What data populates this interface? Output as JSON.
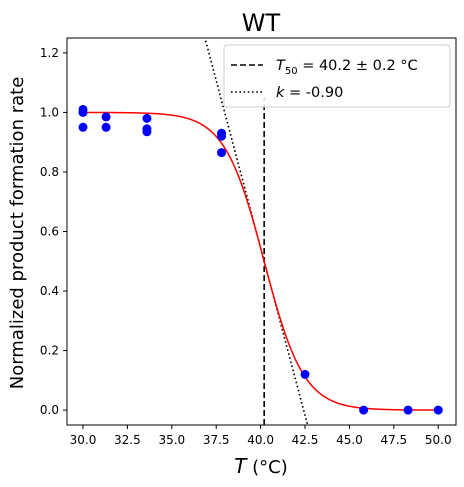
{
  "chart_data": {
    "type": "scatter",
    "title": "WT",
    "xlabel": {
      "symbol": "T",
      "unit": "(°C)"
    },
    "ylabel": "Normalized product formation rate",
    "xlim": [
      29.1,
      51.0
    ],
    "ylim": [
      -0.05,
      1.25
    ],
    "xticks": [
      30.0,
      32.5,
      35.0,
      37.5,
      40.0,
      42.5,
      45.0,
      47.5,
      50.0
    ],
    "xtick_labels": [
      "30.0",
      "32.5",
      "35.0",
      "37.5",
      "40.0",
      "42.5",
      "45.0",
      "47.5",
      "50.0"
    ],
    "yticks": [
      0.0,
      0.2,
      0.4,
      0.6,
      0.8,
      1.0,
      1.2
    ],
    "ytick_labels": [
      "0.0",
      "0.2",
      "0.4",
      "0.6",
      "0.8",
      "1.0",
      "1.2"
    ],
    "grid": false,
    "legend_position": "top-right",
    "points": {
      "color": "#0000ff",
      "x": [
        30.0,
        30.0,
        30.0,
        31.3,
        31.3,
        33.6,
        33.6,
        33.6,
        37.8,
        37.8,
        37.8,
        42.5,
        45.8,
        48.3,
        50.0
      ],
      "y": [
        1.01,
        1.0,
        0.95,
        0.985,
        0.95,
        0.98,
        0.945,
        0.935,
        0.93,
        0.92,
        0.865,
        0.12,
        0.0,
        0.0,
        0.0
      ]
    },
    "fit": {
      "color": "#ff0000",
      "t50": 40.2,
      "slope": 0.9,
      "xrange": [
        30.0,
        50.0
      ]
    },
    "t50_line": {
      "x": 40.2,
      "y_range": [
        -0.05,
        1.05
      ],
      "color": "#000000",
      "style": "dashed"
    },
    "tangent": {
      "through": [
        40.2,
        0.5
      ],
      "k": -0.9,
      "color": "#000000",
      "style": "dotted"
    },
    "legend": [
      {
        "style": "dashed",
        "symbol": "T",
        "subscript": "50",
        "text": " = 40.2 ± 0.2 °C"
      },
      {
        "style": "dotted",
        "symbol": "k",
        "text": " = -0.90"
      }
    ]
  }
}
